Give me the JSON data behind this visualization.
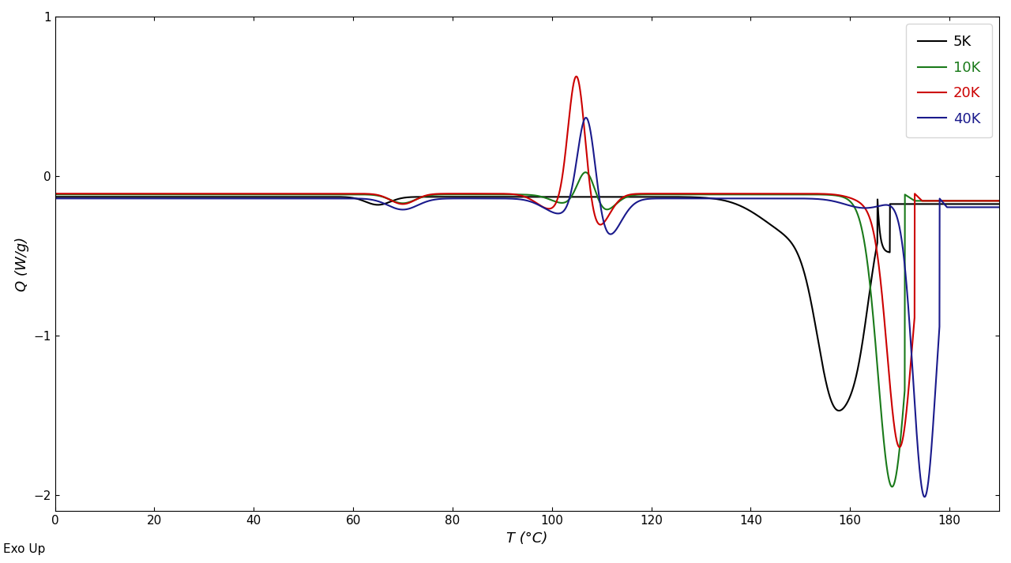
{
  "xlabel": "T (°C)",
  "ylabel": "Q (W/g)",
  "xlim": [
    0,
    190
  ],
  "ylim": [
    -2.1,
    1.0
  ],
  "yticks": [
    1,
    0,
    -1,
    -2
  ],
  "xticks": [
    0,
    20,
    40,
    60,
    80,
    100,
    120,
    140,
    160,
    180
  ],
  "exo_up_label": "Exo Up",
  "legend_labels": [
    "5K",
    "10K",
    "20K",
    "40K"
  ],
  "legend_colors": [
    "#000000",
    "#1a7a1a",
    "#cc0000",
    "#1a1a8c"
  ],
  "line_width": 1.5,
  "background_color": "#ffffff"
}
